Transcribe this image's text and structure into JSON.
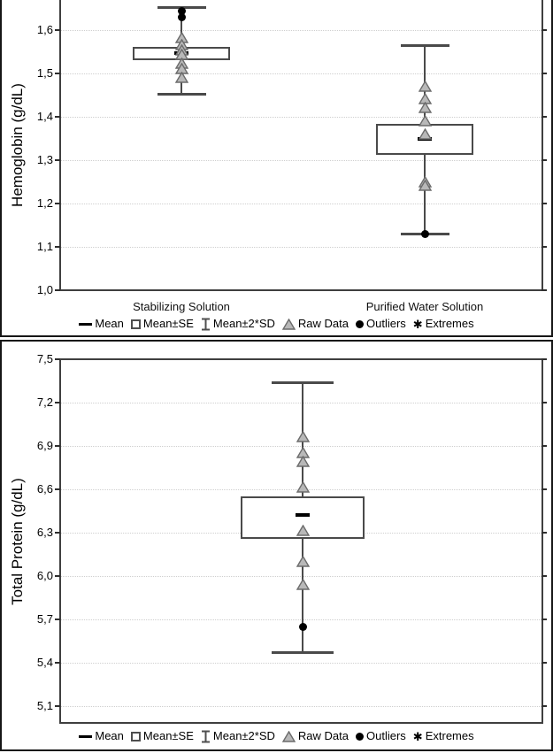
{
  "colors": {
    "background": "#ffffff",
    "panel_border": "#161616",
    "axis": "#3f3f3f",
    "gridline": "#cfcfcf",
    "box_line": "#4a4a4a",
    "triangle_fill": "#b8b8b8",
    "triangle_stroke": "#6b6b6b",
    "marker_black": "#000000"
  },
  "legend": {
    "items": [
      {
        "icon": "mean-dash-icon",
        "label": "Mean"
      },
      {
        "icon": "mean-se-box-icon",
        "label": "Mean±SE"
      },
      {
        "icon": "mean-2sd-whisker-icon",
        "label": "Mean±2*SD"
      },
      {
        "icon": "raw-data-triangle-icon",
        "label": "Raw Data"
      },
      {
        "icon": "outliers-dot-icon",
        "label": "Outliers"
      },
      {
        "icon": "extremes-asterisk-icon",
        "label": "Extremes"
      }
    ]
  },
  "chart_data": [
    {
      "type": "box",
      "title": "",
      "xlabel": "",
      "ylabel": "Hemoglobin (g/dL)",
      "ylim": [
        1.0,
        1.67
      ],
      "grid": "horizontal-dotted",
      "legend_position": "bottom",
      "yticks": {
        "values": [
          1.0,
          1.1,
          1.2,
          1.3,
          1.4,
          1.5,
          1.6
        ],
        "labels": [
          "1,0",
          "1,1",
          "1,2",
          "1,3",
          "1,4",
          "1,5",
          "1,6"
        ]
      },
      "groups": [
        {
          "category": "Stabilizing Solution",
          "mean": 1.547,
          "mean_se": [
            1.531,
            1.561
          ],
          "mean_2sd": [
            1.451,
            1.653
          ],
          "raw_data": [
            1.582,
            1.565,
            1.553,
            1.542,
            1.522,
            1.51,
            1.49
          ],
          "outliers": [
            1.645,
            1.63
          ],
          "extremes": []
        },
        {
          "category": "Purified Water Solution",
          "mean": 1.349,
          "mean_se": [
            1.312,
            1.384
          ],
          "mean_2sd": [
            1.129,
            1.565
          ],
          "raw_data": [
            1.47,
            1.44,
            1.42,
            1.39,
            1.36,
            1.25,
            1.24
          ],
          "outliers": [
            1.13
          ],
          "extremes": []
        }
      ]
    },
    {
      "type": "box",
      "title": "",
      "xlabel": "",
      "ylabel": "Total Protein (g/dL)",
      "ylim": [
        5.0,
        7.5
      ],
      "grid": "horizontal-dotted",
      "legend_position": "bottom",
      "yticks": {
        "values": [
          5.1,
          5.4,
          5.7,
          6.0,
          6.3,
          6.6,
          6.9,
          7.2,
          7.5
        ],
        "labels": [
          "5,1",
          "5,4",
          "5,7",
          "6,0",
          "6,3",
          "6,6",
          "6,9",
          "7,2",
          "7,5"
        ]
      },
      "groups": [
        {
          "category": "",
          "mean": 6.42,
          "mean_se": [
            6.26,
            6.55
          ],
          "mean_2sd": [
            5.47,
            7.34
          ],
          "raw_data": [
            6.96,
            6.85,
            6.79,
            6.61,
            6.31,
            6.1,
            5.94
          ],
          "outliers": [
            5.65
          ],
          "extremes": []
        }
      ]
    }
  ]
}
